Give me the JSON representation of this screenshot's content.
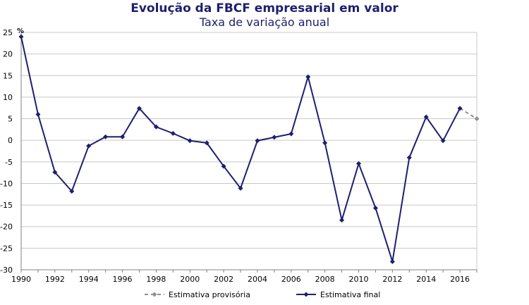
{
  "chart_data": {
    "type": "line",
    "title": "Evolução da FBCF empresarial em valor",
    "subtitle": "Taxa de variação anual",
    "ylabel": "%",
    "xlim": [
      1990,
      2017
    ],
    "ylim": [
      -30,
      25
    ],
    "x_ticks": [
      1990,
      1992,
      1994,
      1996,
      1998,
      2000,
      2002,
      2004,
      2006,
      2008,
      2010,
      2012,
      2014,
      2016
    ],
    "y_ticks": [
      25,
      20,
      15,
      10,
      5,
      0,
      -5,
      -10,
      -15,
      -20,
      -25,
      -30
    ],
    "grid": true,
    "legend_position": "bottom",
    "series": [
      {
        "name": "Estimativa provisória",
        "color": "#909090",
        "style": "dashed",
        "x": [
          2016,
          2017
        ],
        "values": [
          7.4,
          5.0
        ]
      },
      {
        "name": "Estimativa final",
        "color": "#1f1f6e",
        "style": "solid",
        "x": [
          1990,
          1991,
          1992,
          1993,
          1994,
          1995,
          1996,
          1997,
          1998,
          1999,
          2000,
          2001,
          2002,
          2003,
          2004,
          2005,
          2006,
          2007,
          2008,
          2009,
          2010,
          2011,
          2012,
          2013,
          2014,
          2015,
          2016
        ],
        "values": [
          24.0,
          6.0,
          -7.4,
          -11.8,
          -1.3,
          0.8,
          0.8,
          7.4,
          3.1,
          1.6,
          -0.1,
          -0.6,
          -6.0,
          -11.1,
          -0.1,
          0.7,
          1.5,
          14.7,
          -0.6,
          -18.5,
          -5.4,
          -15.7,
          -28.1,
          -4.0,
          5.4,
          -0.1,
          7.4
        ]
      }
    ]
  }
}
